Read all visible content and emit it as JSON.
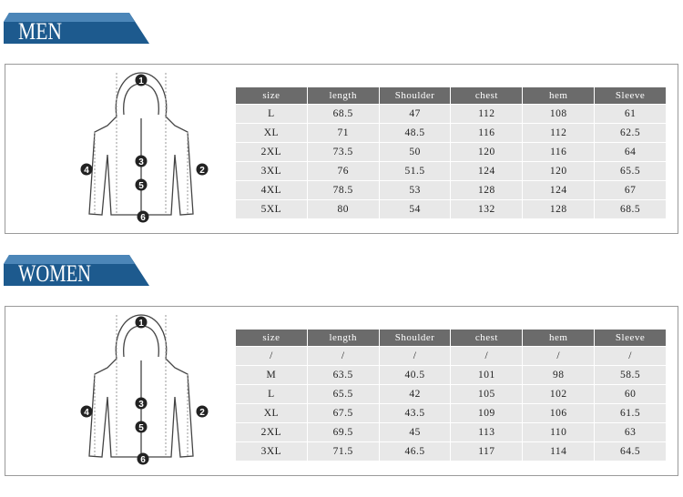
{
  "sections": [
    {
      "title": "MEN",
      "diagram_labels": [
        "1",
        "2",
        "3",
        "4",
        "5",
        "6"
      ],
      "table": {
        "header": [
          "size",
          "length",
          "Shoulder",
          "chest",
          "hem",
          "Sleeve"
        ],
        "rows": [
          [
            "L",
            "68.5",
            "47",
            "112",
            "108",
            "61"
          ],
          [
            "XL",
            "71",
            "48.5",
            "116",
            "112",
            "62.5"
          ],
          [
            "2XL",
            "73.5",
            "50",
            "120",
            "116",
            "64"
          ],
          [
            "3XL",
            "76",
            "51.5",
            "124",
            "120",
            "65.5"
          ],
          [
            "4XL",
            "78.5",
            "53",
            "128",
            "124",
            "67"
          ],
          [
            "5XL",
            "80",
            "54",
            "132",
            "128",
            "68.5"
          ]
        ]
      }
    },
    {
      "title": "WOMEN",
      "diagram_labels": [
        "1",
        "2",
        "3",
        "4",
        "5",
        "6"
      ],
      "table": {
        "header": [
          "size",
          "length",
          "Shoulder",
          "chest",
          "hem",
          "Sleeve"
        ],
        "rows": [
          [
            "/",
            "/",
            "/",
            "/",
            "/",
            "/"
          ],
          [
            "M",
            "63.5",
            "40.5",
            "101",
            "98",
            "58.5"
          ],
          [
            "L",
            "65.5",
            "42",
            "105",
            "102",
            "60"
          ],
          [
            "XL",
            "67.5",
            "43.5",
            "109",
            "106",
            "61.5"
          ],
          [
            "2XL",
            "69.5",
            "45",
            "113",
            "110",
            "63"
          ],
          [
            "3XL",
            "71.5",
            "46.5",
            "117",
            "114",
            "64.5"
          ]
        ]
      }
    }
  ]
}
